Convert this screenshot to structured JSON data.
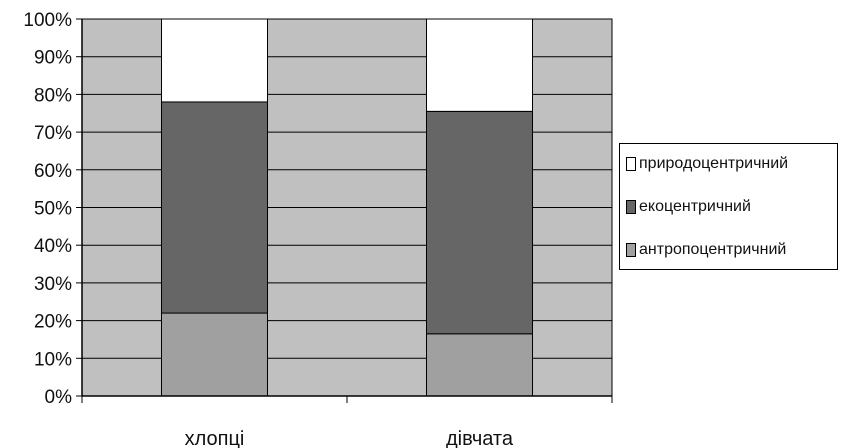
{
  "chart_data": {
    "type": "bar",
    "stacked": true,
    "percent": true,
    "categories": [
      "хлопці",
      "дівчата"
    ],
    "series": [
      {
        "name": "антропоцентричний",
        "values": [
          22,
          16.5
        ],
        "color": "#a0a0a0"
      },
      {
        "name": "екоцентричний",
        "values": [
          56,
          59
        ],
        "color": "#666666"
      },
      {
        "name": "природоцентричний",
        "values": [
          22,
          24.5
        ],
        "color": "#ffffff"
      }
    ],
    "yticks": [
      "0%",
      "10%",
      "20%",
      "30%",
      "40%",
      "50%",
      "60%",
      "70%",
      "80%",
      "90%",
      "100%"
    ],
    "ylim": [
      0,
      100
    ],
    "grid": true,
    "plot_background": "#c0c0c0",
    "legend": {
      "position": "right",
      "items": [
        "природоцентричний",
        "екоцентричний",
        "антропоцентричний"
      ]
    }
  }
}
